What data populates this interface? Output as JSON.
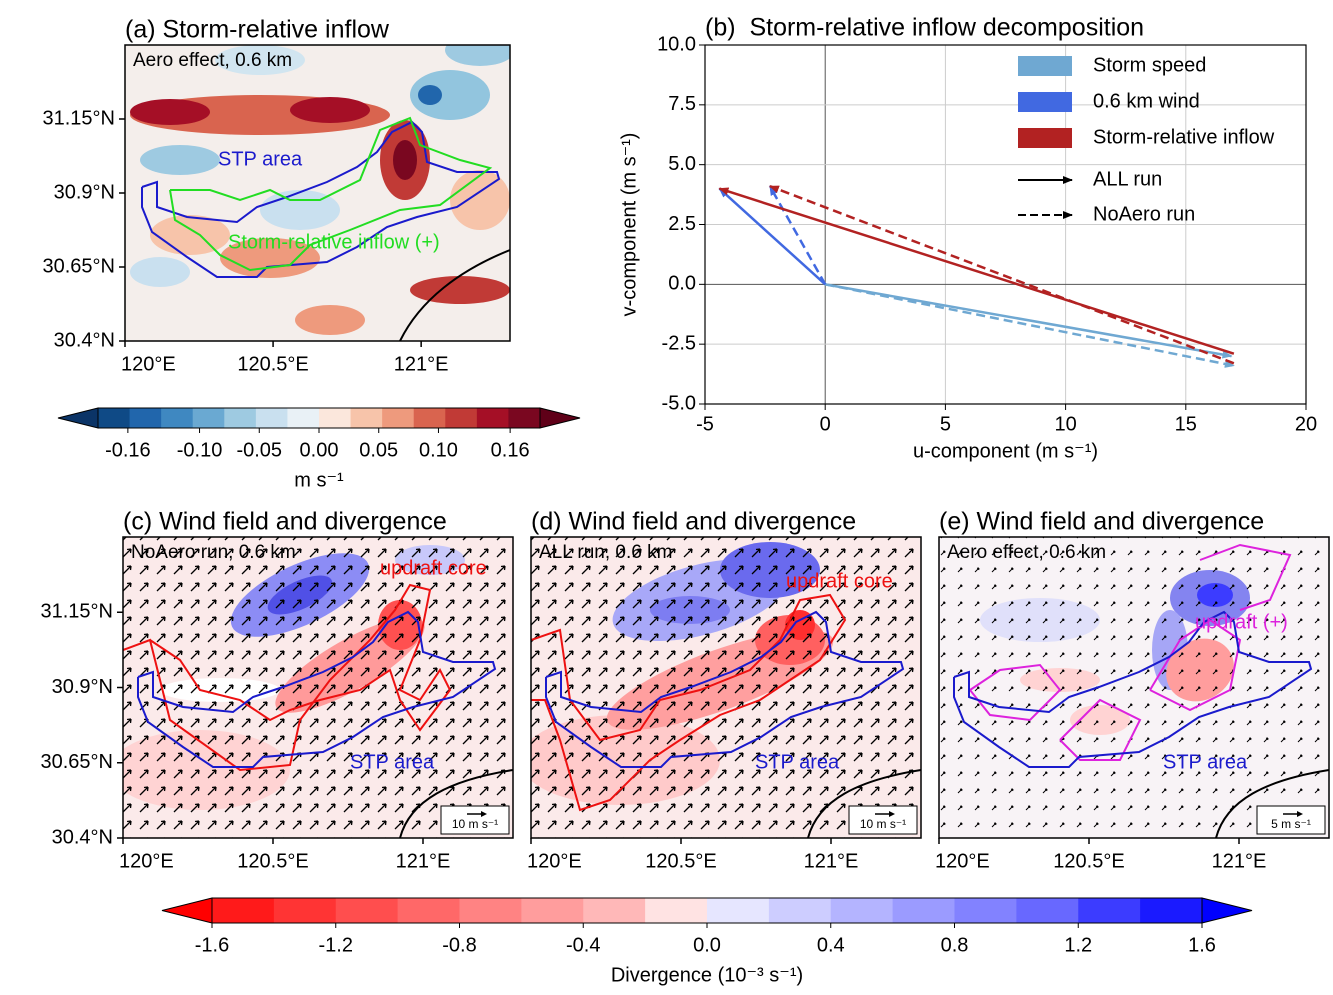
{
  "chart_data": [
    {
      "type": "map",
      "title": "(a) Storm-relative inflow",
      "annotation": "Aero effect, 0.6 km",
      "labels": [
        "STP area",
        "Storm-relative inflow (+)"
      ],
      "xlim": [
        120,
        121.3
      ],
      "ylim": [
        30.4,
        31.4
      ],
      "xticks": [
        {
          "value": 120,
          "label": "120°E"
        },
        {
          "value": 120.5,
          "label": "120.5°E"
        },
        {
          "value": 121,
          "label": "121°E"
        }
      ],
      "yticks": [
        {
          "value": 30.4,
          "label": "30.4°N"
        },
        {
          "value": 30.65,
          "label": "30.65°N"
        },
        {
          "value": 30.9,
          "label": "30.9°N"
        },
        {
          "value": 31.15,
          "label": "31.15°N"
        }
      ]
    },
    {
      "type": "vector",
      "title": "(b)  Storm-relative inflow decomposition",
      "x_label": "u-component (m s⁻¹)",
      "y_label": "v-component (m s⁻¹)",
      "xlim": [
        -5,
        20
      ],
      "ylim": [
        -5,
        10
      ],
      "xticks": [
        -5,
        0,
        5,
        10,
        15,
        20
      ],
      "yticks": [
        {
          "value": -5,
          "label": "-5.0"
        },
        -2.5,
        {
          "value": 0,
          "label": "0.0"
        },
        2.5,
        {
          "value": 5,
          "label": "5.0"
        },
        7.5,
        {
          "value": 10,
          "label": "10.0"
        }
      ],
      "grid": true,
      "legend": "upper right",
      "line_styles": [
        {
          "name": "ALL run",
          "dash": "solid"
        },
        {
          "name": "NoAero run",
          "dash": "dashed"
        }
      ],
      "series": [
        {
          "name": "Storm speed",
          "color": "#6fa8d2",
          "arrows": [
            {
              "x": [
                0,
                16.9
              ],
              "y": [
                0,
                -3.0
              ]
            },
            {
              "x": [
                0,
                17
              ],
              "y": [
                0,
                -3.4
              ]
            }
          ]
        },
        {
          "name": "0.6 km wind",
          "color": "#4169e1",
          "arrows": [
            {
              "x": [
                0,
                -4.4
              ],
              "y": [
                0,
                4.0
              ]
            },
            {
              "x": [
                0,
                -2.3
              ],
              "y": [
                0,
                4.1
              ]
            }
          ]
        },
        {
          "name": "Storm-relative inflow",
          "color": "#b22222",
          "arrows": [
            {
              "x": [
                17,
                -4.4
              ],
              "y": [
                -2.9,
                4.0
              ]
            },
            {
              "x": [
                17,
                -2.3
              ],
              "y": [
                -3.3,
                4.1
              ]
            }
          ]
        }
      ]
    },
    {
      "type": "map",
      "title": "(c) Wind field and divergence",
      "annotation": "NoAero run, 0.6 km",
      "labels": [
        "updraft core",
        "STP area"
      ],
      "reference_vector": "10 m s⁻¹",
      "xlim": [
        120,
        121.3
      ],
      "ylim": [
        30.4,
        31.4
      ],
      "xticks": [
        {
          "value": 120,
          "label": "120°E"
        },
        {
          "value": 120.5,
          "label": "120.5°E"
        },
        {
          "value": 121,
          "label": "121°E"
        }
      ],
      "yticks": [
        {
          "value": 30.4,
          "label": "30.4°N"
        },
        {
          "value": 30.65,
          "label": "30.65°N"
        },
        {
          "value": 30.9,
          "label": "30.9°N"
        },
        {
          "value": 31.15,
          "label": "31.15°N"
        }
      ]
    },
    {
      "type": "map",
      "title": "(d) Wind field and divergence",
      "annotation": "ALL run, 0.6 km",
      "labels": [
        "updraft core",
        "STP area"
      ],
      "reference_vector": "10 m s⁻¹",
      "xlim": [
        120,
        121.3
      ],
      "xticks": [
        {
          "value": 120,
          "label": "120°E"
        },
        {
          "value": 120.5,
          "label": "120.5°E"
        },
        {
          "value": 121,
          "label": "121°E"
        }
      ]
    },
    {
      "type": "map",
      "title": "(e) Wind field and divergence",
      "annotation": "Aero effect, 0.6 km",
      "labels": [
        "updraft (+)",
        "STP area"
      ],
      "reference_vector": "5 m s⁻¹",
      "xlim": [
        120,
        121.3
      ],
      "xticks": [
        {
          "value": 120,
          "label": "120°E"
        },
        {
          "value": 120.5,
          "label": "120.5°E"
        },
        {
          "value": 121,
          "label": "121°E"
        }
      ]
    },
    {
      "type": "colorbar",
      "label": "m s⁻¹",
      "xlim": [
        -0.185,
        0.185
      ],
      "ticks": [
        -0.16,
        {
          "value": -0.1,
          "label": "-0.10"
        },
        -0.05,
        {
          "value": 0,
          "label": "0.00"
        },
        0.05,
        {
          "value": 0.1,
          "label": "0.10"
        },
        0.16
      ],
      "colors": [
        "#0f4a86",
        "#2166ac",
        "#3f88c1",
        "#6aa9d2",
        "#9ecae1",
        "#c9e0ef",
        "#e9f1f6",
        "#fbe7dc",
        "#f7c4aa",
        "#ee9a7d",
        "#d9644f",
        "#c13a36",
        "#a50f26",
        "#7a0720"
      ],
      "extend_colors": [
        "#0b3467",
        "#5f0018"
      ]
    },
    {
      "type": "colorbar",
      "label": "Divergence (10⁻³ s⁻¹)",
      "xlim": [
        -1.6,
        1.6
      ],
      "ticks": [
        -1.6,
        -1.2,
        -0.8,
        -0.4,
        {
          "value": 0,
          "label": "0.0"
        },
        0.4,
        0.8,
        1.2,
        1.6
      ],
      "colors": [
        "#ff1a1a",
        "#ff3434",
        "#ff4e4e",
        "#ff6868",
        "#ff8383",
        "#ff9d9d",
        "#ffb8b8",
        "#ffe3e3",
        "#e6e6ff",
        "#cdcdff",
        "#b4b4ff",
        "#9b9bff",
        "#8282ff",
        "#6868ff",
        "#3c3cff",
        "#1a1aff"
      ],
      "extend_colors": [
        "#ff0000",
        "#0000ff"
      ]
    }
  ]
}
